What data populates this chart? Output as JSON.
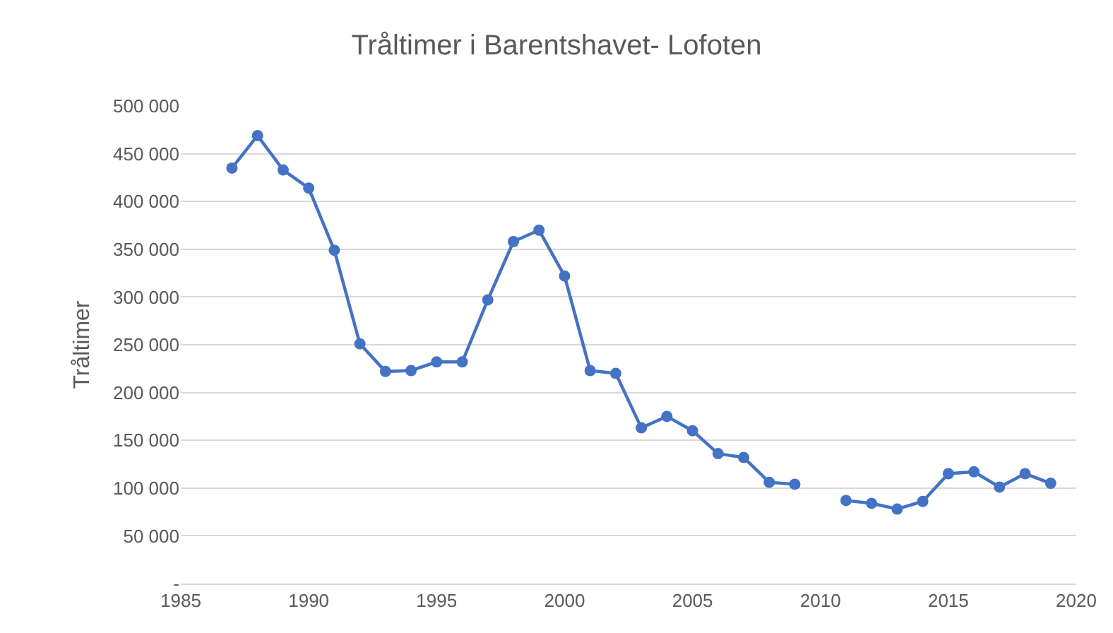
{
  "chart_data": {
    "type": "line",
    "title": "Tråltimer i Barentshavet- Lofoten",
    "ylabel": "Tråltimer",
    "x": [
      1987,
      1988,
      1989,
      1990,
      1991,
      1992,
      1993,
      1994,
      1995,
      1996,
      1997,
      1998,
      1999,
      2000,
      2001,
      2002,
      2003,
      2004,
      2005,
      2006,
      2007,
      2008,
      2009,
      2010,
      2011,
      2012,
      2013,
      2014,
      2015,
      2016,
      2017,
      2018,
      2019
    ],
    "series": [
      {
        "color": "#4472c4",
        "values": [
          435000,
          469000,
          433000,
          414000,
          349000,
          251000,
          222000,
          223000,
          232000,
          232000,
          297000,
          358000,
          370000,
          322000,
          223000,
          220000,
          163000,
          175000,
          160000,
          136000,
          132000,
          106000,
          104000,
          null,
          87000,
          84000,
          78000,
          86000,
          115000,
          117000,
          101000,
          115000,
          105000
        ]
      }
    ],
    "xlim": [
      1985,
      2020
    ],
    "xticks": [
      1985,
      1990,
      1995,
      2000,
      2005,
      2010,
      2015,
      2020
    ],
    "ylim": [
      0,
      500000
    ],
    "yticks": [
      {
        "value": 0,
        "label": "-"
      },
      {
        "value": 50000,
        "label": "50 000"
      },
      {
        "value": 100000,
        "label": "100 000"
      },
      {
        "value": 150000,
        "label": "150 000"
      },
      {
        "value": 200000,
        "label": "200 000"
      },
      {
        "value": 250000,
        "label": "250 000"
      },
      {
        "value": 300000,
        "label": "300 000"
      },
      {
        "value": 350000,
        "label": "350 000"
      },
      {
        "value": 400000,
        "label": "400 000"
      },
      {
        "value": 450000,
        "label": "450 000"
      },
      {
        "value": 500000,
        "label": "500 000"
      }
    ],
    "grid": "y",
    "marker": "circle",
    "line_style": "solid"
  }
}
